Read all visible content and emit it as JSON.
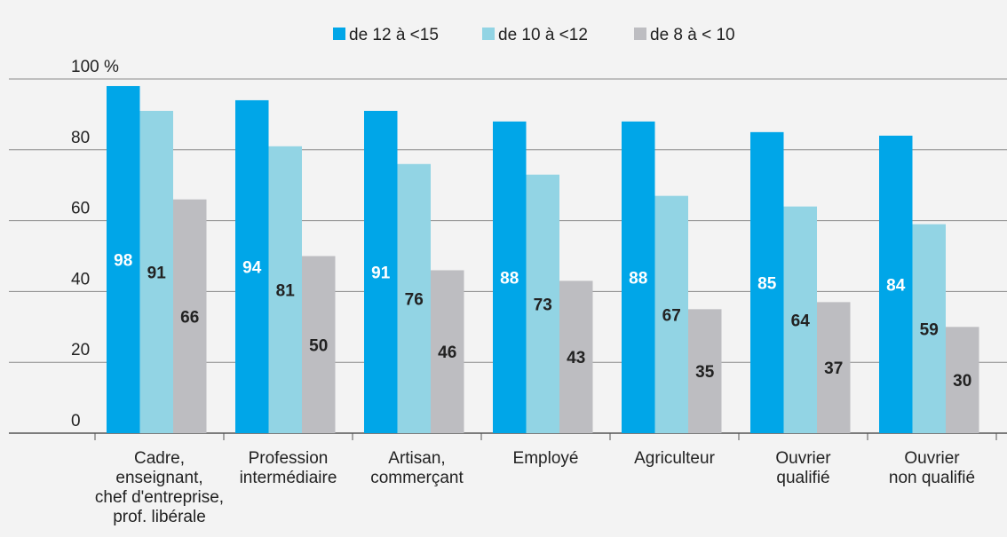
{
  "chart_data": {
    "type": "bar",
    "categories": [
      "Cadre,\nenseignant,\nchef d'entreprise,\nprof. libérale",
      "Profession\nintermédiaire",
      "Artisan,\ncommerçant",
      "Employé",
      "Agriculteur",
      "Ouvrier\nqualifié",
      "Ouvrier\nnon qualifié"
    ],
    "series": [
      {
        "name": "de 12 à <15",
        "color": "#00a6e8",
        "values": [
          98,
          94,
          91,
          88,
          88,
          85,
          84
        ]
      },
      {
        "name": "de 10 à <12",
        "color": "#92d4e4",
        "values": [
          91,
          81,
          76,
          73,
          67,
          64,
          59
        ]
      },
      {
        "name": "de 8 à < 10",
        "color": "#bdbdc1",
        "values": [
          66,
          50,
          46,
          43,
          35,
          37,
          30
        ]
      }
    ],
    "ylim": [
      0,
      100
    ],
    "yticks": [
      0,
      20,
      40,
      60,
      80,
      {
        "value": 100,
        "label": "100 %"
      }
    ],
    "grid": true,
    "legend": "top"
  }
}
